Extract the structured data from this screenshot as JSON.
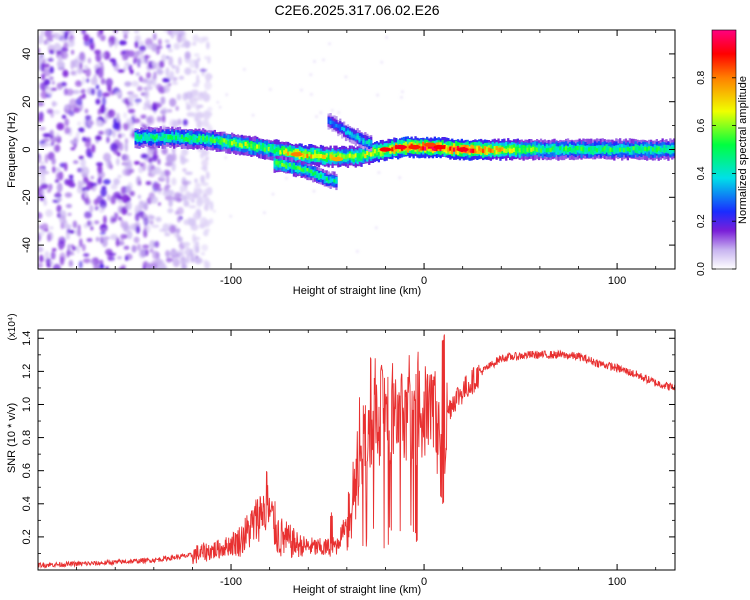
{
  "figure": {
    "title": "C2E6.2025.317.06.02.E26"
  },
  "chart_data": [
    {
      "type": "heatmap",
      "name": "spectrogram",
      "xlabel": "Height of straight line (km)",
      "ylabel": "Frequency (Hz)",
      "xlim": [
        -200,
        130
      ],
      "ylim": [
        -50,
        50
      ],
      "xticks": [
        -100,
        0,
        100
      ],
      "xtick_labels": [
        "-100",
        "0",
        "100"
      ],
      "yticks": [
        -40,
        -20,
        0,
        20,
        40
      ],
      "ytick_labels": [
        "-40",
        "-20",
        "0",
        "20",
        "40"
      ],
      "colorbar": {
        "label": "Normalized spectral amplitude",
        "range": [
          0.0,
          1.0
        ],
        "ticks": [
          0.0,
          0.2,
          0.4,
          0.6,
          0.8
        ],
        "tick_labels": [
          "0.0",
          "0.2",
          "0.4",
          "0.6",
          "0.8"
        ],
        "colormap": [
          "#ffffff",
          "#c8b4f0",
          "#7a1fd8",
          "#1a2cff",
          "#00e0e8",
          "#00ff40",
          "#f0ff00",
          "#ff8000",
          "#ff0000",
          "#ff0080"
        ]
      },
      "features": {
        "noise_region_x": [
          -200,
          -120
        ],
        "main_trace": [
          {
            "x": -145,
            "f": 5,
            "amp": 0.45
          },
          {
            "x": -130,
            "f": 5,
            "amp": 0.5
          },
          {
            "x": -110,
            "f": 4,
            "amp": 0.5
          },
          {
            "x": -95,
            "f": 2,
            "amp": 0.6
          },
          {
            "x": -80,
            "f": 0,
            "amp": 0.55
          },
          {
            "x": -65,
            "f": -2,
            "amp": 0.75
          },
          {
            "x": -50,
            "f": -3,
            "amp": 0.65
          },
          {
            "x": -35,
            "f": -3,
            "amp": 0.6
          },
          {
            "x": -20,
            "f": 0,
            "amp": 0.75
          },
          {
            "x": -10,
            "f": 1,
            "amp": 0.9
          },
          {
            "x": 0,
            "f": 1,
            "amp": 0.9
          },
          {
            "x": 10,
            "f": 0.5,
            "amp": 0.85
          },
          {
            "x": 20,
            "f": 0,
            "amp": 0.9
          },
          {
            "x": 60,
            "f": 0,
            "amp": 0.5
          },
          {
            "x": 100,
            "f": 0,
            "amp": 0.5
          },
          {
            "x": 130,
            "f": 0,
            "amp": 0.5
          }
        ],
        "lower_branch": [
          {
            "x": -75,
            "f": -6,
            "amp": 0.55
          },
          {
            "x": -60,
            "f": -9,
            "amp": 0.5
          },
          {
            "x": -50,
            "f": -13,
            "amp": 0.45
          }
        ],
        "upper_branch": [
          {
            "x": -50,
            "f": 12,
            "amp": 0.3
          },
          {
            "x": -40,
            "f": 7,
            "amp": 0.35
          },
          {
            "x": -30,
            "f": 3,
            "amp": 0.4
          }
        ]
      }
    },
    {
      "type": "line",
      "name": "snr",
      "xlabel": "Height of straight line (km)",
      "ylabel": "SNR (10 * v/v)",
      "y_multiplier": "(x10⁴)",
      "xlim": [
        -200,
        130
      ],
      "ylim": [
        0,
        1.45
      ],
      "xticks": [
        -100,
        0,
        100
      ],
      "xtick_labels": [
        "-100",
        "0",
        "100"
      ],
      "yticks": [
        0.2,
        0.4,
        0.6,
        0.8,
        1.0,
        1.2,
        1.4
      ],
      "ytick_labels": [
        "0.2",
        "0.4",
        "0.6",
        "0.8",
        "1.0",
        "1.2",
        "1.4"
      ],
      "color": "#e83030",
      "envelope": {
        "x": [
          -200,
          -170,
          -140,
          -120,
          -105,
          -95,
          -88,
          -82,
          -75,
          -65,
          -52,
          -45,
          -40,
          -35,
          -30,
          -25,
          -22,
          -18,
          -15,
          -10,
          -5,
          0,
          5,
          8,
          10,
          12,
          15,
          20,
          30,
          40,
          55,
          70,
          80,
          90,
          100,
          110,
          120,
          130
        ],
        "y": [
          0.03,
          0.04,
          0.06,
          0.09,
          0.13,
          0.18,
          0.28,
          0.4,
          0.2,
          0.15,
          0.13,
          0.15,
          0.3,
          0.55,
          0.8,
          0.9,
          0.88,
          0.92,
          0.9,
          0.82,
          0.9,
          0.95,
          1.0,
          0.75,
          0.6,
          0.95,
          1.02,
          1.08,
          1.2,
          1.28,
          1.3,
          1.3,
          1.29,
          1.25,
          1.22,
          1.18,
          1.13,
          1.1
        ]
      },
      "spikes": [
        {
          "x": -82,
          "y": 0.62
        },
        {
          "x": -48,
          "y": 0.35
        },
        {
          "x": -28,
          "y": 1.3
        },
        {
          "x": -22,
          "y": 1.25
        },
        {
          "x": -12,
          "y": 1.2
        },
        {
          "x": -5,
          "y": 1.05
        },
        {
          "x": 10,
          "y": 1.43
        }
      ]
    }
  ]
}
